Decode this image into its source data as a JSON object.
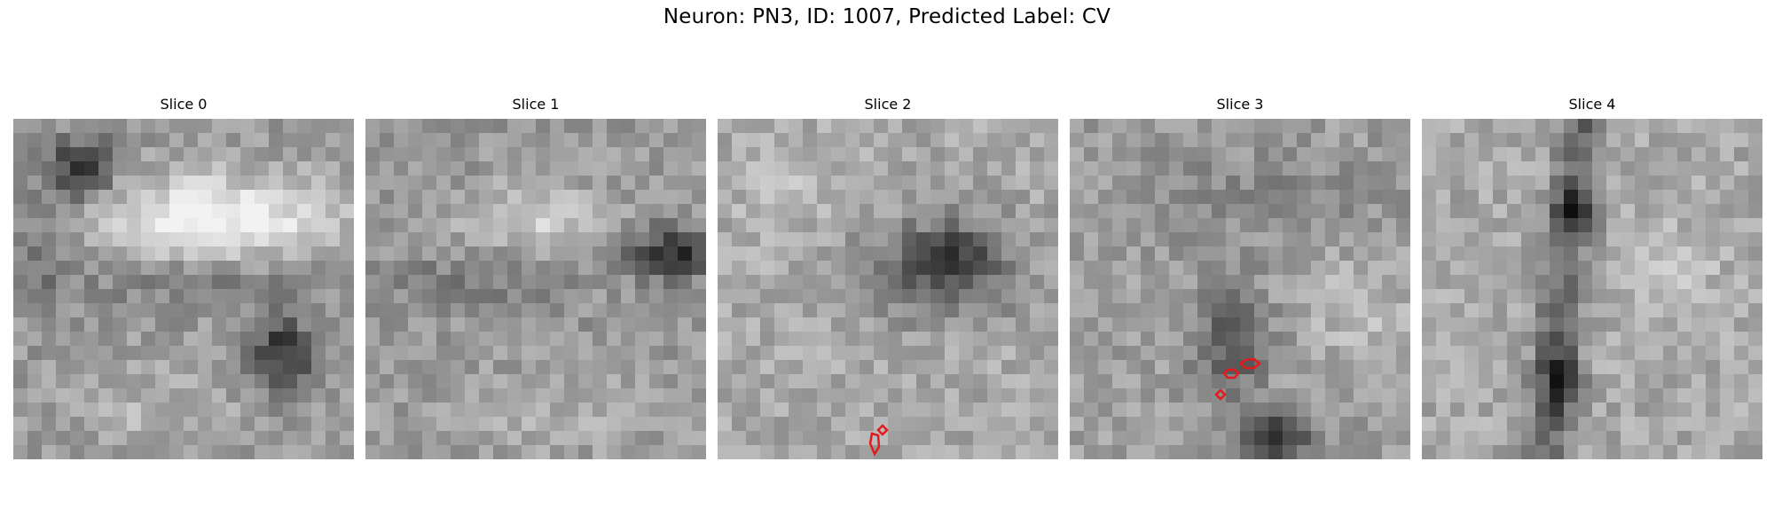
{
  "figure": {
    "title": "Neuron: PN3, ID: 1007, Predicted Label: CV"
  },
  "panels": [
    {
      "title": "Slice 0"
    },
    {
      "title": "Slice 1"
    },
    {
      "title": "Slice 2"
    },
    {
      "title": "Slice 3"
    },
    {
      "title": "Slice 4"
    }
  ],
  "colors": {
    "contour": "#e31a1c",
    "colormap": "gray"
  }
}
